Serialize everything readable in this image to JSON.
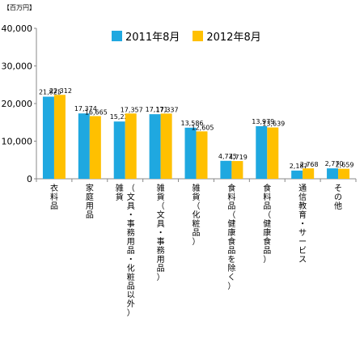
{
  "chart_data": {
    "type": "bar",
    "unit_label": "【百万円】",
    "categories": [
      {
        "lines": [
          "衣料品"
        ]
      },
      {
        "lines": [
          "家庭用品"
        ]
      },
      {
        "lines": [
          "雑貨",
          "（文具・事務用品・化粧品以外）"
        ]
      },
      {
        "lines": [
          "雑貨（文具・事務用品）"
        ]
      },
      {
        "lines": [
          "雑貨（化粧品）"
        ]
      },
      {
        "lines": [
          "食料品（健康食品を除く）"
        ]
      },
      {
        "lines": [
          "食料品（健康食品）"
        ]
      },
      {
        "lines": [
          "通信教育・サービス"
        ]
      },
      {
        "lines": [
          "その他"
        ]
      }
    ],
    "series": [
      {
        "name": "2011年8月",
        "color": "#1fa8e0",
        "values": [
          21825,
          17374,
          15223,
          17171,
          13586,
          4775,
          13979,
          2187,
          2770
        ],
        "labels": [
          "21,825",
          "17,374",
          "15,223",
          "17,171",
          "13,586",
          "4,775",
          "13,979",
          "2,187",
          "2,770"
        ]
      },
      {
        "name": "2012年8月",
        "color": "#ffc000",
        "values": [
          22312,
          16665,
          17357,
          17337,
          12605,
          4719,
          13639,
          2768,
          2659
        ],
        "labels": [
          "22,312",
          "16,665",
          "17,357",
          "17,337",
          "12,605",
          "4,719",
          "13,639",
          "2,768",
          "2,659"
        ]
      }
    ],
    "yticks": [
      "0",
      "10,000",
      "20,000",
      "30,000",
      "40,000"
    ],
    "ylim": [
      0,
      40000
    ],
    "legend_position": "top",
    "grid": false
  }
}
